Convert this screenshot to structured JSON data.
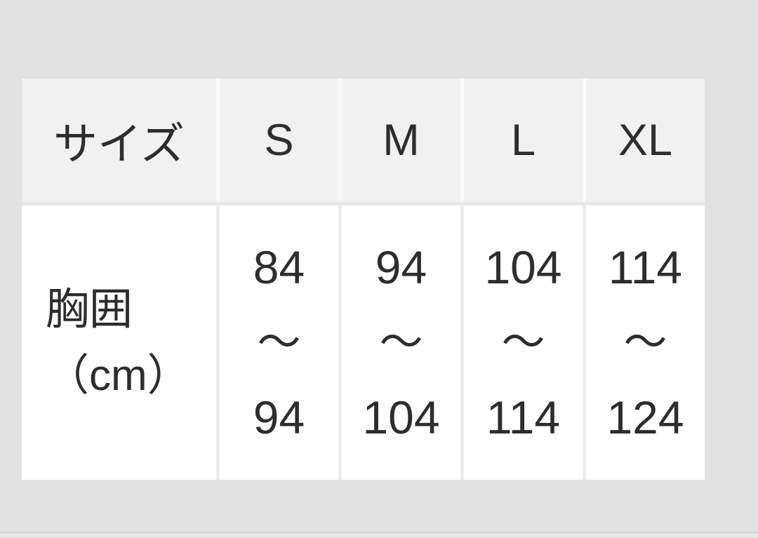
{
  "colors": {
    "page_bg": "#e2e2e2",
    "header_cell_bg": "#f1f1f1",
    "header_gap": "#fafafa",
    "body_cell_bg": "#ffffff",
    "body_gap": "#ededed",
    "row_gap": "#e7e7e7",
    "text": "#2d2d2d",
    "bottom_hairline": "#d7d7d7",
    "bottom_strip": "#e6e6e6"
  },
  "size_chart": {
    "header": {
      "row_label": "サイズ",
      "sizes": [
        "S",
        "M",
        "L",
        "XL"
      ]
    },
    "rows": [
      {
        "label_line1": "胸囲",
        "label_line2": "（cm）",
        "range_separator": "〜",
        "values": [
          {
            "min": "84",
            "max": "94"
          },
          {
            "min": "94",
            "max": "104"
          },
          {
            "min": "104",
            "max": "114"
          },
          {
            "min": "114",
            "max": "124"
          }
        ]
      }
    ]
  }
}
